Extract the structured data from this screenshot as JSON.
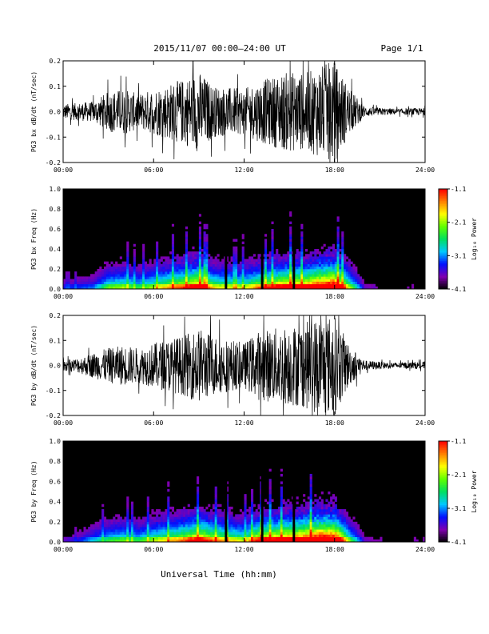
{
  "header": {
    "title": "2015/11/07  00:00–24:00 UT",
    "page_label": "Page 1/1"
  },
  "x_axis": {
    "label": "Universal Time (hh:mm)",
    "range_hours": [
      0,
      24
    ],
    "tick_labels": [
      "00:00",
      "06:00",
      "12:00",
      "18:00",
      "24:00"
    ]
  },
  "chart_data": [
    {
      "type": "line",
      "ylabel": "PG3 bx dB/dt (nT/sec)",
      "ylim": [
        -0.2,
        0.2
      ],
      "y_tick_labels": [
        "0.2",
        "0.1",
        "0.0",
        "-0.1",
        "-0.2"
      ],
      "series": [
        {
          "amplitude_envelope": {
            "hours": [
              0,
              2,
              3,
              4,
              5,
              6,
              8,
              9,
              10,
              12,
              13,
              15,
              16,
              17,
              18,
              19,
              20,
              21,
              22,
              24
            ],
            "amplitude": [
              0.03,
              0.04,
              0.08,
              0.09,
              0.07,
              0.09,
              0.13,
              0.16,
              0.1,
              0.09,
              0.12,
              0.16,
              0.15,
              0.18,
              0.2,
              0.09,
              0.02,
              0.015,
              0.012,
              0.015
            ]
          }
        }
      ]
    },
    {
      "type": "heatmap",
      "ylabel": "PG3 bx Freq (Hz)",
      "ylim": [
        0,
        1.0
      ],
      "y_tick_labels": [
        "1.0",
        "0.8",
        "0.6",
        "0.4",
        "0.2",
        "0.0"
      ],
      "colorbar": {
        "label": "Log₁₀ Power",
        "range": [
          -4.1,
          -1.1
        ],
        "tick_labels": [
          "-1.1",
          "-2.1",
          "-3.1",
          "-4.1"
        ],
        "colors": [
          "#000000",
          "#8000b0",
          "#0010ff",
          "#00c8ff",
          "#00e060",
          "#60ff00",
          "#ffff00",
          "#ff8000",
          "#ff0000"
        ]
      },
      "vertical_lines_hours": [
        10.8,
        13.2,
        15.3
      ]
    },
    {
      "type": "line",
      "ylabel": "PG3 by dB/dt (nT/sec)",
      "ylim": [
        -0.2,
        0.2
      ],
      "y_tick_labels": [
        "0.2",
        "0.1",
        "0.0",
        "-0.1",
        "-0.2"
      ],
      "series": [
        {
          "amplitude_envelope": {
            "hours": [
              0,
              1,
              2,
              3,
              4,
              5,
              6,
              8,
              9,
              10,
              12,
              13,
              15,
              16,
              17,
              18,
              19,
              20,
              21,
              22,
              24
            ],
            "amplitude": [
              0.02,
              0.03,
              0.05,
              0.07,
              0.08,
              0.07,
              0.09,
              0.12,
              0.15,
              0.12,
              0.09,
              0.14,
              0.16,
              0.17,
              0.2,
              0.2,
              0.08,
              0.02,
              0.015,
              0.012,
              0.015
            ]
          }
        }
      ]
    },
    {
      "type": "heatmap",
      "ylabel": "PG3 by Freq (Hz)",
      "ylim": [
        0,
        1.0
      ],
      "y_tick_labels": [
        "1.0",
        "0.8",
        "0.6",
        "0.4",
        "0.2",
        "0.0"
      ],
      "colorbar": {
        "label": "Log₁₀ Power",
        "range": [
          -4.1,
          -1.1
        ],
        "tick_labels": [
          "-1.1",
          "-2.1",
          "-3.1",
          "-4.1"
        ],
        "colors": [
          "#000000",
          "#8000b0",
          "#0010ff",
          "#00c8ff",
          "#00e060",
          "#60ff00",
          "#ffff00",
          "#ff8000",
          "#ff0000"
        ]
      },
      "vertical_lines_hours": [
        10.8,
        13.2,
        15.3
      ]
    }
  ]
}
